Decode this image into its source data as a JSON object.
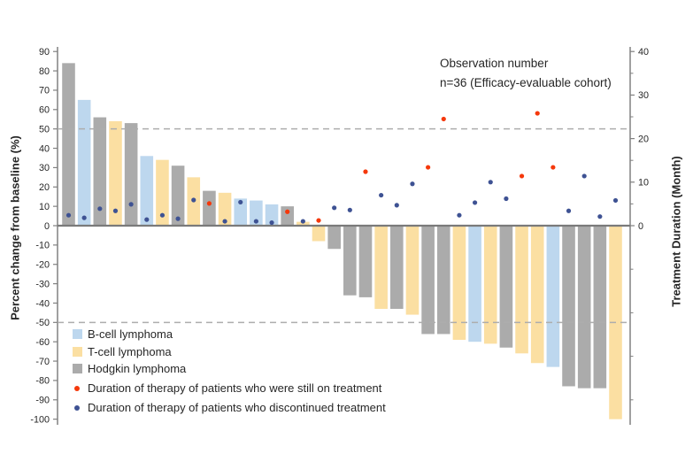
{
  "chart_data": {
    "type": "bar",
    "subtype": "waterfall-best-response-with-treatment-duration-scatter",
    "annotation": {
      "line1": "Observation number",
      "line2": "n=36 (Efficacy-evaluable cohort)"
    },
    "left_axis": {
      "label": "Percent change from baseline (%)",
      "ticks": [
        90,
        80,
        70,
        60,
        50,
        40,
        30,
        20,
        10,
        0,
        -10,
        -20,
        -30,
        -40,
        -50,
        -60,
        -70,
        -80,
        -90,
        -100
      ],
      "range": [
        -100,
        90
      ],
      "reference_lines": [
        50,
        -50
      ]
    },
    "right_axis": {
      "label": "Treatment Duration (Month)",
      "major_ticks": [
        40,
        30,
        20,
        10,
        0
      ],
      "minor_ticks": [
        35,
        25,
        15,
        5
      ],
      "unlabeled_ticks": [
        -10,
        -20,
        -30,
        -40
      ],
      "range": [
        0,
        40
      ]
    },
    "legend": {
      "bar_items": [
        {
          "key": "B-cell",
          "label": "B-cell lymphoma",
          "color": "#BDD7EE"
        },
        {
          "key": "T-cell",
          "label": "T-cell lymphoma",
          "color": "#FBDFA2"
        },
        {
          "key": "Hodgkin",
          "label": "Hodgkin lymphoma",
          "color": "#ABABAB"
        }
      ],
      "dot_items": [
        {
          "key": "still-on-treatment",
          "label": "Duration of therapy of patients who were still on treatment",
          "color": "#F5380B"
        },
        {
          "key": "discontinued",
          "label": "Duration of therapy of patients who discontinued treatment",
          "color": "#3E5293"
        }
      ]
    },
    "colors": {
      "axis": "#808080",
      "baseline": "#7A7A7A",
      "dashed": "#ADADAD",
      "text": "#262626"
    },
    "observations": [
      {
        "n": 1,
        "pct_change": 84,
        "lymphoma": "Hodgkin",
        "duration_months": 2.4,
        "status": "discontinued"
      },
      {
        "n": 2,
        "pct_change": 65,
        "lymphoma": "B-cell",
        "duration_months": 1.8,
        "status": "discontinued"
      },
      {
        "n": 3,
        "pct_change": 56,
        "lymphoma": "Hodgkin",
        "duration_months": 3.9,
        "status": "discontinued"
      },
      {
        "n": 4,
        "pct_change": 54,
        "lymphoma": "T-cell",
        "duration_months": 3.4,
        "status": "discontinued"
      },
      {
        "n": 5,
        "pct_change": 53,
        "lymphoma": "Hodgkin",
        "duration_months": 4.9,
        "status": "discontinued"
      },
      {
        "n": 6,
        "pct_change": 36,
        "lymphoma": "B-cell",
        "duration_months": 1.4,
        "status": "discontinued"
      },
      {
        "n": 7,
        "pct_change": 34,
        "lymphoma": "T-cell",
        "duration_months": 2.4,
        "status": "discontinued"
      },
      {
        "n": 8,
        "pct_change": 31,
        "lymphoma": "Hodgkin",
        "duration_months": 1.6,
        "status": "discontinued"
      },
      {
        "n": 9,
        "pct_change": 25,
        "lymphoma": "T-cell",
        "duration_months": 5.9,
        "status": "discontinued"
      },
      {
        "n": 10,
        "pct_change": 18,
        "lymphoma": "Hodgkin",
        "duration_months": 5.1,
        "status": "still-on-treatment"
      },
      {
        "n": 11,
        "pct_change": 17,
        "lymphoma": "T-cell",
        "duration_months": 1.0,
        "status": "discontinued"
      },
      {
        "n": 12,
        "pct_change": 14,
        "lymphoma": "B-cell",
        "duration_months": 5.4,
        "status": "discontinued"
      },
      {
        "n": 13,
        "pct_change": 13,
        "lymphoma": "B-cell",
        "duration_months": 1.0,
        "status": "discontinued"
      },
      {
        "n": 14,
        "pct_change": 11,
        "lymphoma": "B-cell",
        "duration_months": 0.7,
        "status": "discontinued"
      },
      {
        "n": 15,
        "pct_change": 10,
        "lymphoma": "Hodgkin",
        "duration_months": 3.2,
        "status": "still-on-treatment"
      },
      {
        "n": 16,
        "pct_change": 2,
        "lymphoma": "T-cell",
        "duration_months": 1.0,
        "status": "discontinued"
      },
      {
        "n": 17,
        "pct_change": -8,
        "lymphoma": "T-cell",
        "duration_months": 1.2,
        "status": "still-on-treatment"
      },
      {
        "n": 18,
        "pct_change": -12,
        "lymphoma": "Hodgkin",
        "duration_months": 4.1,
        "status": "discontinued"
      },
      {
        "n": 19,
        "pct_change": -36,
        "lymphoma": "Hodgkin",
        "duration_months": 3.6,
        "status": "discontinued"
      },
      {
        "n": 20,
        "pct_change": -37,
        "lymphoma": "Hodgkin",
        "duration_months": 12.4,
        "status": "still-on-treatment"
      },
      {
        "n": 21,
        "pct_change": -43,
        "lymphoma": "T-cell",
        "duration_months": 7.0,
        "status": "discontinued"
      },
      {
        "n": 22,
        "pct_change": -43,
        "lymphoma": "Hodgkin",
        "duration_months": 4.7,
        "status": "discontinued"
      },
      {
        "n": 23,
        "pct_change": -46,
        "lymphoma": "T-cell",
        "duration_months": 9.6,
        "status": "discontinued"
      },
      {
        "n": 24,
        "pct_change": -56,
        "lymphoma": "Hodgkin",
        "duration_months": 13.4,
        "status": "still-on-treatment"
      },
      {
        "n": 25,
        "pct_change": -56,
        "lymphoma": "Hodgkin",
        "duration_months": 24.5,
        "status": "still-on-treatment"
      },
      {
        "n": 26,
        "pct_change": -59,
        "lymphoma": "T-cell",
        "duration_months": 2.4,
        "status": "discontinued"
      },
      {
        "n": 27,
        "pct_change": -60,
        "lymphoma": "B-cell",
        "duration_months": 5.3,
        "status": "discontinued"
      },
      {
        "n": 28,
        "pct_change": -61,
        "lymphoma": "T-cell",
        "duration_months": 10.0,
        "status": "discontinued"
      },
      {
        "n": 29,
        "pct_change": -63,
        "lymphoma": "Hodgkin",
        "duration_months": 6.2,
        "status": "discontinued"
      },
      {
        "n": 30,
        "pct_change": -66,
        "lymphoma": "T-cell",
        "duration_months": 11.4,
        "status": "still-on-treatment"
      },
      {
        "n": 31,
        "pct_change": -71,
        "lymphoma": "T-cell",
        "duration_months": 25.8,
        "status": "still-on-treatment"
      },
      {
        "n": 32,
        "pct_change": -73,
        "lymphoma": "B-cell",
        "duration_months": 13.4,
        "status": "still-on-treatment"
      },
      {
        "n": 33,
        "pct_change": -83,
        "lymphoma": "Hodgkin",
        "duration_months": 3.4,
        "status": "discontinued"
      },
      {
        "n": 34,
        "pct_change": -84,
        "lymphoma": "Hodgkin",
        "duration_months": 11.4,
        "status": "discontinued"
      },
      {
        "n": 35,
        "pct_change": -84,
        "lymphoma": "Hodgkin",
        "duration_months": 2.1,
        "status": "discontinued"
      },
      {
        "n": 36,
        "pct_change": -100,
        "lymphoma": "T-cell",
        "duration_months": 5.8,
        "status": "discontinued"
      }
    ]
  }
}
